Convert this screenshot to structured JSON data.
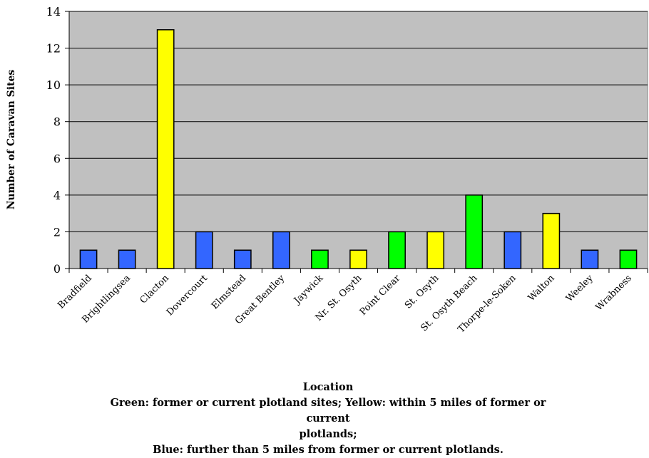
{
  "chart_data": {
    "type": "bar",
    "categories": [
      "Bradfield",
      "Brightlingsea",
      "Clacton",
      "Dovercourt",
      "Elmstead",
      "Great Bentley",
      "Jaywick",
      "Nr. St. Osyth",
      "Point Clear",
      "St. Osyth",
      "St. Osyth Beach",
      "Thorpe-le-Soken",
      "Walton",
      "Weeley",
      "Wrabness"
    ],
    "values": [
      1,
      1,
      13,
      2,
      1,
      2,
      1,
      1,
      2,
      2,
      4,
      2,
      3,
      1,
      1
    ],
    "bar_colors": [
      "#3366ff",
      "#3366ff",
      "#ffff00",
      "#3366ff",
      "#3366ff",
      "#3366ff",
      "#00ff00",
      "#ffff00",
      "#00ff00",
      "#ffff00",
      "#00ff00",
      "#3366ff",
      "#ffff00",
      "#3366ff",
      "#00ff00"
    ],
    "ylabel": "Number of Caravan Sites",
    "xlabel": "Location",
    "ylim": [
      0,
      14
    ],
    "yticks": [
      0,
      2,
      4,
      6,
      8,
      10,
      12,
      14
    ],
    "grid": true,
    "plot_background": "#c0c0c0"
  },
  "caption": {
    "line1": "Location",
    "line2": "Green: former or current plotland sites; Yellow: within 5 miles of former or current",
    "line3": "plotlands;",
    "line4": "Blue: further than 5 miles from former or current plotlands."
  }
}
